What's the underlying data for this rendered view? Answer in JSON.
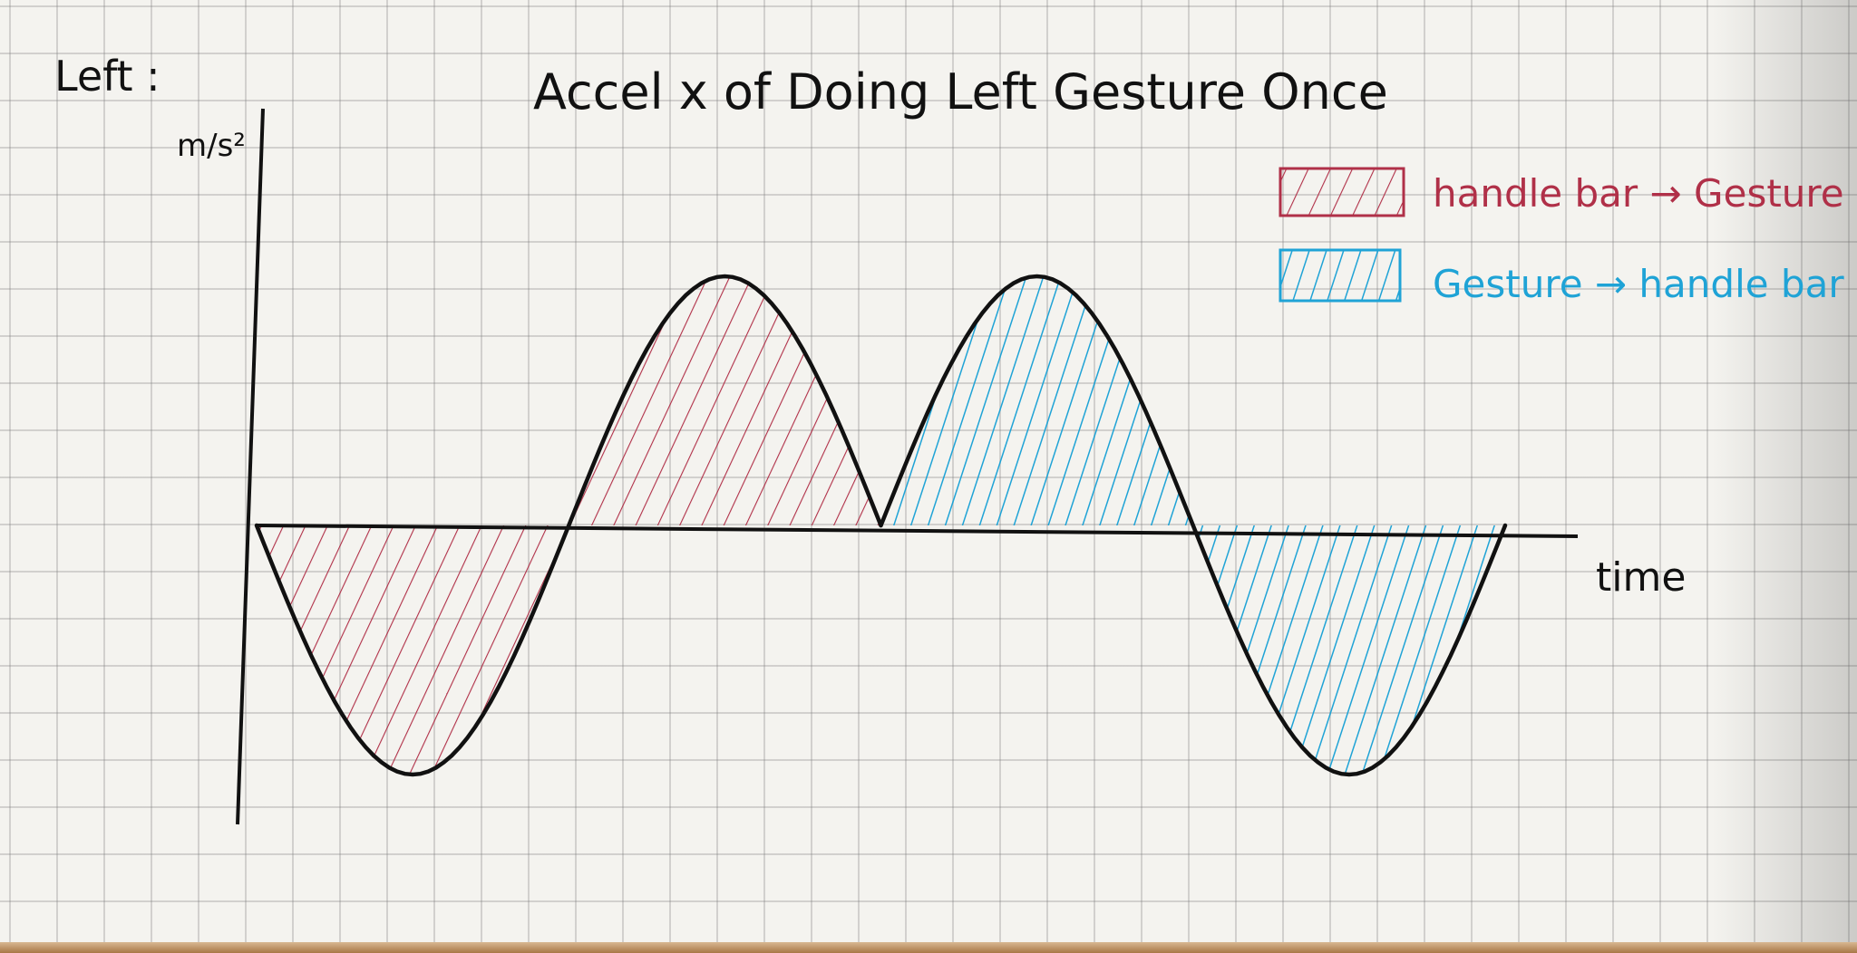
{
  "chart_data": {
    "type": "area",
    "title": "Accel x of Doing Left Gesture Once",
    "corner_label": "Left :",
    "ylabel": "m/s²",
    "xlabel": "time",
    "x": [
      0,
      0.25,
      0.5,
      0.75,
      1,
      1.25,
      1.5,
      1.75,
      2,
      2.25,
      2.5,
      2.75,
      3,
      3.25,
      3.5,
      3.75,
      4
    ],
    "series": [
      {
        "name": "handle bar → Gesture",
        "color": "#b03048",
        "x": [
          0,
          0.25,
          0.5,
          0.75,
          1,
          1.25,
          1.5,
          1.75,
          2
        ],
        "values": [
          0,
          -0.7,
          -1.0,
          -0.7,
          0,
          0.7,
          1.0,
          0.7,
          0
        ]
      },
      {
        "name": "Gesture → handle bar",
        "color": "#1fa3d6",
        "x": [
          2,
          2.25,
          2.5,
          2.75,
          3,
          3.25,
          3.5,
          3.75,
          4
        ],
        "values": [
          0,
          0.7,
          1.0,
          0.7,
          0,
          -0.7,
          -1.0,
          -0.7,
          0
        ]
      }
    ],
    "xlim": [
      0,
      4
    ],
    "ylim": [
      -1.1,
      1.1
    ],
    "legend_position": "top-right",
    "grid": true,
    "line_color": "#111111"
  }
}
